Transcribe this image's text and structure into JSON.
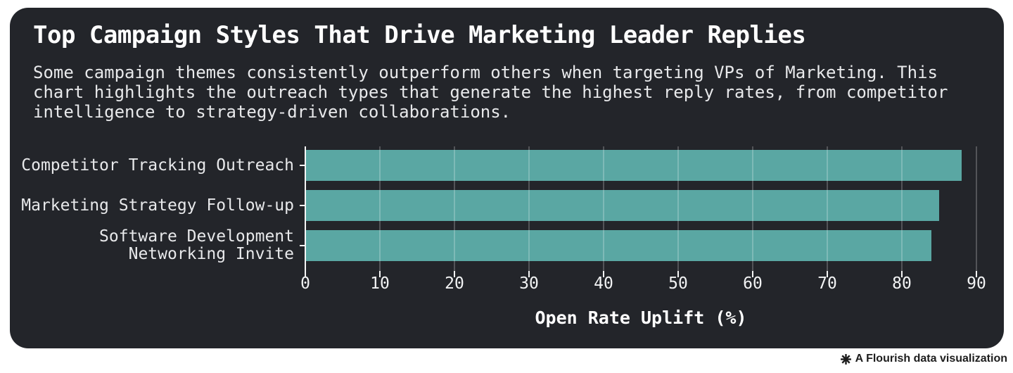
{
  "chart_data": {
    "type": "bar",
    "orientation": "horizontal",
    "title": "Top Campaign Styles That Drive Marketing Leader Replies",
    "subtitle": "Some campaign themes consistently outperform others when targeting VPs of Marketing. This chart highlights the outreach types that generate the highest reply rates, from competitor intelligence to strategy-driven collaborations.",
    "categories": [
      "Competitor Tracking Outreach",
      "Marketing Strategy Follow-up",
      "Software Development Networking Invite"
    ],
    "values": [
      88,
      85,
      84
    ],
    "xlabel": "Open Rate Uplift (%)",
    "xticks": [
      0,
      10,
      20,
      30,
      40,
      50,
      60,
      70,
      80,
      90
    ],
    "xlim": [
      0,
      90
    ],
    "grid": true,
    "legend": "none",
    "bar_color": "#5AA7A3"
  },
  "footer": {
    "label": "A Flourish data visualization",
    "icon": "flourish-star-icon"
  },
  "colors": {
    "page_bg": "#FFFFFF",
    "card_bg": "#23252A",
    "bar": "#5AA7A3",
    "grid": "rgba(255,255,255,0.22)",
    "axis": "#F5F5F5",
    "title_text": "#FFFFFF",
    "body_text": "#E8E9EB",
    "tick_text": "#F2F3F4",
    "footer_text": "#1D1D1D"
  }
}
